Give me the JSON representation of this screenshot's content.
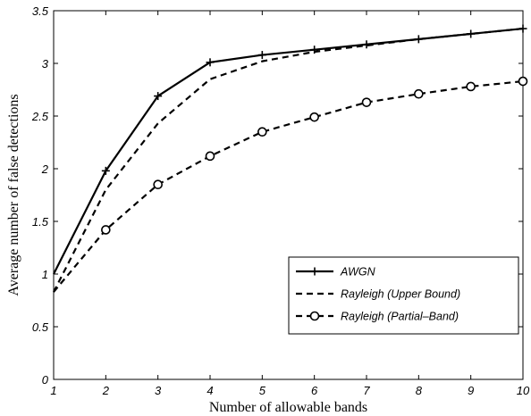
{
  "chart_data": {
    "type": "line",
    "xlabel": "Number of allowable bands",
    "ylabel": "Average number of false detections",
    "xlim": [
      1,
      10
    ],
    "ylim": [
      0,
      3.5
    ],
    "x_ticks": [
      1,
      2,
      3,
      4,
      5,
      6,
      7,
      8,
      9,
      10
    ],
    "y_ticks": [
      0,
      0.5,
      1,
      1.5,
      2,
      2.5,
      3,
      3.5
    ],
    "x_tick_labels": [
      "1",
      "2",
      "3",
      "4",
      "5",
      "6",
      "7",
      "8",
      "9",
      "10"
    ],
    "y_tick_labels": [
      "0",
      "0.5",
      "1",
      "1.5",
      "2",
      "2.5",
      "3",
      "3.5"
    ],
    "grid": false,
    "legend_position": "lower-right",
    "x": [
      1,
      2,
      3,
      4,
      5,
      6,
      7,
      8,
      9,
      10
    ],
    "series": [
      {
        "name": "AWGN",
        "values": [
          1.0,
          1.98,
          2.69,
          3.01,
          3.08,
          3.13,
          3.18,
          3.23,
          3.28,
          3.33
        ],
        "line_style": "solid",
        "marker": "plus",
        "color": "#000000"
      },
      {
        "name": "Rayleigh (Upper Bound)",
        "values": [
          0.83,
          1.8,
          2.43,
          2.85,
          3.02,
          3.11,
          3.17,
          3.23,
          3.28,
          3.33
        ],
        "line_style": "dashed",
        "marker": "none",
        "color": "#000000"
      },
      {
        "name": "Rayleigh (Partial–Band)",
        "values": [
          0.83,
          1.42,
          1.85,
          2.12,
          2.35,
          2.49,
          2.63,
          2.71,
          2.78,
          2.83
        ],
        "line_style": "dashed",
        "marker": "circle",
        "color": "#000000"
      }
    ]
  }
}
